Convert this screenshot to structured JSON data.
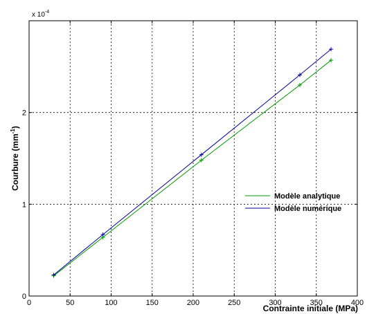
{
  "chart_data": {
    "type": "line",
    "xlabel": "Contrainte initiale (MPa)",
    "ylabel_prefix": "Courbure  (mm",
    "ylabel_exp": "-1",
    "ylabel_suffix": ")",
    "scale_base": "x 10",
    "scale_exp": "-4",
    "xlim": [
      0,
      400
    ],
    "ylim": [
      0,
      3
    ],
    "x_ticks": [
      "0",
      "50",
      "100",
      "150",
      "200",
      "250",
      "300",
      "350",
      "400"
    ],
    "y_ticks": [
      "0",
      "1",
      "2"
    ],
    "grid": true,
    "legend_position": "center-right",
    "series": [
      {
        "name": "Modèle analytique",
        "color": "#009900",
        "marker": "+",
        "x": [
          30,
          90,
          210,
          330,
          368
        ],
        "y": [
          0.22,
          0.64,
          1.48,
          2.3,
          2.57
        ]
      },
      {
        "name": "Modèle numérique",
        "color": "#000099",
        "marker": "+",
        "x": [
          30,
          90,
          210,
          330,
          368
        ],
        "y": [
          0.23,
          0.67,
          1.54,
          2.41,
          2.69
        ]
      }
    ]
  }
}
